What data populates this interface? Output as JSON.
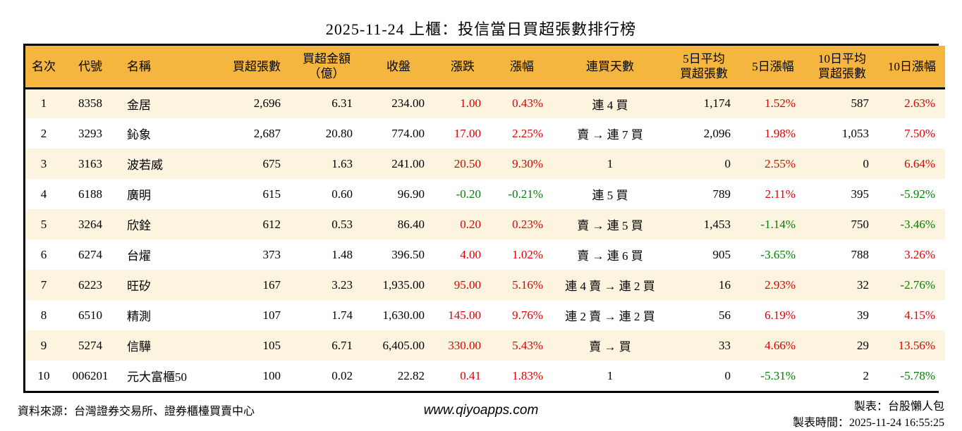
{
  "title": "2025-11-24 上櫃：投信當日買超張數排行榜",
  "colors": {
    "header_bg": "#F5B63F",
    "row_alt_bg": "#FCF4DF",
    "up_red": "#E00000",
    "down_green": "#008000",
    "border": "#000000"
  },
  "table": {
    "columns": [
      {
        "key": "rank",
        "label": "名次",
        "align": "center"
      },
      {
        "key": "code",
        "label": "代號",
        "align": "center"
      },
      {
        "key": "name",
        "label": "名稱",
        "align": "left"
      },
      {
        "key": "volume",
        "label": "買超張數",
        "align": "right"
      },
      {
        "key": "amount",
        "label": "買超金額\n（億）",
        "align": "right"
      },
      {
        "key": "close",
        "label": "收盤",
        "align": "right"
      },
      {
        "key": "change",
        "label": "漲跌",
        "align": "right"
      },
      {
        "key": "change_pct",
        "label": "漲幅",
        "align": "right"
      },
      {
        "key": "streak",
        "label": "連買天數",
        "align": "center"
      },
      {
        "key": "avg5",
        "label": "5日平均\n買超張數",
        "align": "right"
      },
      {
        "key": "pct5",
        "label": "5日漲幅",
        "align": "right"
      },
      {
        "key": "avg10",
        "label": "10日平均\n買超張數",
        "align": "right"
      },
      {
        "key": "pct10",
        "label": "10日漲幅",
        "align": "right"
      }
    ],
    "rows": [
      [
        "1",
        "8358",
        "金居",
        "2,696",
        "6.31",
        "234.00",
        {
          "v": "1.00",
          "c": "up"
        },
        {
          "v": "0.43%",
          "c": "up"
        },
        "連 4 買",
        "1,174",
        {
          "v": "1.52%",
          "c": "up"
        },
        "587",
        {
          "v": "2.63%",
          "c": "up"
        }
      ],
      [
        "2",
        "3293",
        "鈊象",
        "2,687",
        "20.80",
        "774.00",
        {
          "v": "17.00",
          "c": "up"
        },
        {
          "v": "2.25%",
          "c": "up"
        },
        "賣 → 連 7 買",
        "2,096",
        {
          "v": "1.98%",
          "c": "up"
        },
        "1,053",
        {
          "v": "7.50%",
          "c": "up"
        }
      ],
      [
        "3",
        "3163",
        "波若威",
        "675",
        "1.63",
        "241.00",
        {
          "v": "20.50",
          "c": "up"
        },
        {
          "v": "9.30%",
          "c": "up"
        },
        "1",
        "0",
        {
          "v": "2.55%",
          "c": "up"
        },
        "0",
        {
          "v": "6.64%",
          "c": "up"
        }
      ],
      [
        "4",
        "6188",
        "廣明",
        "615",
        "0.60",
        "96.90",
        {
          "v": "-0.20",
          "c": "down"
        },
        {
          "v": "-0.21%",
          "c": "down"
        },
        "連 5 買",
        "789",
        {
          "v": "2.11%",
          "c": "up"
        },
        "395",
        {
          "v": "-5.92%",
          "c": "down"
        }
      ],
      [
        "5",
        "3264",
        "欣銓",
        "612",
        "0.53",
        "86.40",
        {
          "v": "0.20",
          "c": "up"
        },
        {
          "v": "0.23%",
          "c": "up"
        },
        "賣 → 連 5 買",
        "1,453",
        {
          "v": "-1.14%",
          "c": "down"
        },
        "750",
        {
          "v": "-3.46%",
          "c": "down"
        }
      ],
      [
        "6",
        "6274",
        "台燿",
        "373",
        "1.48",
        "396.50",
        {
          "v": "4.00",
          "c": "up"
        },
        {
          "v": "1.02%",
          "c": "up"
        },
        "賣 → 連 6 買",
        "905",
        {
          "v": "-3.65%",
          "c": "down"
        },
        "788",
        {
          "v": "3.26%",
          "c": "up"
        }
      ],
      [
        "7",
        "6223",
        "旺矽",
        "167",
        "3.23",
        "1,935.00",
        {
          "v": "95.00",
          "c": "up"
        },
        {
          "v": "5.16%",
          "c": "up"
        },
        "連 4 賣 → 連 2 買",
        "16",
        {
          "v": "2.93%",
          "c": "up"
        },
        "32",
        {
          "v": "-2.76%",
          "c": "down"
        }
      ],
      [
        "8",
        "6510",
        "精測",
        "107",
        "1.74",
        "1,630.00",
        {
          "v": "145.00",
          "c": "up"
        },
        {
          "v": "9.76%",
          "c": "up"
        },
        "連 2 賣 → 連 2 買",
        "56",
        {
          "v": "6.19%",
          "c": "up"
        },
        "39",
        {
          "v": "4.15%",
          "c": "up"
        }
      ],
      [
        "9",
        "5274",
        "信驊",
        "105",
        "6.71",
        "6,405.00",
        {
          "v": "330.00",
          "c": "up"
        },
        {
          "v": "5.43%",
          "c": "up"
        },
        "賣 → 買",
        "33",
        {
          "v": "4.66%",
          "c": "up"
        },
        "29",
        {
          "v": "13.56%",
          "c": "up"
        }
      ],
      [
        "10",
        "006201",
        "元大富櫃50",
        "100",
        "0.02",
        "22.82",
        {
          "v": "0.41",
          "c": "up"
        },
        {
          "v": "1.83%",
          "c": "up"
        },
        "1",
        "0",
        {
          "v": "-5.31%",
          "c": "down"
        },
        "2",
        {
          "v": "-5.78%",
          "c": "down"
        }
      ]
    ]
  },
  "footer": {
    "source": "資料來源：台灣證券交易所、證券櫃檯買賣中心",
    "website": "www.qiyoapps.com",
    "author": "製表：台股懶人包",
    "generated": "製表時間：2025-11-24 16:55:25"
  }
}
